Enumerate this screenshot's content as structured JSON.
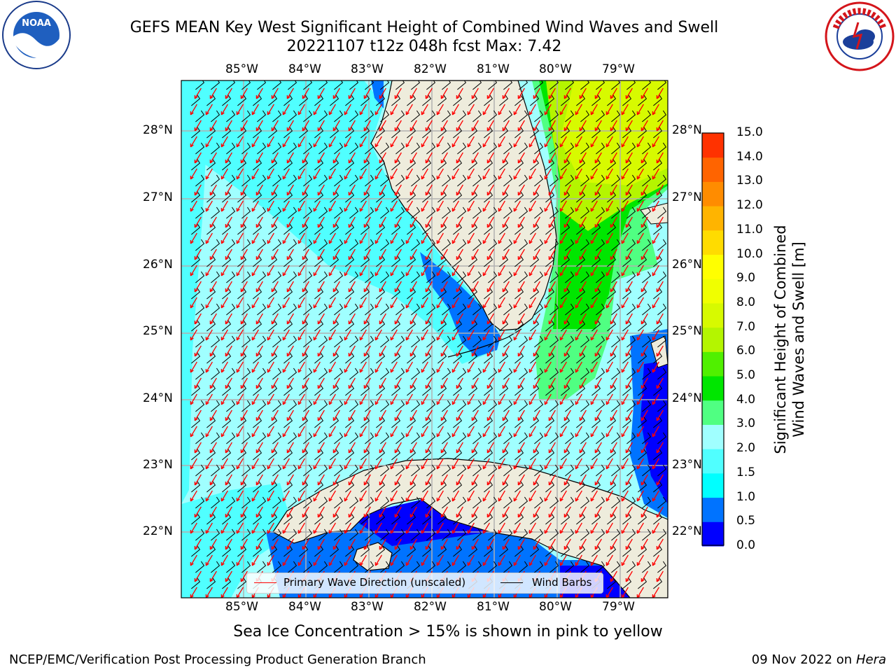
{
  "title_line1": "GEFS MEAN Key West Significant Height of Combined Wind Waves and Swell",
  "title_line2": "20221107 t12z 048h fcst   Max: 7.42",
  "logos": {
    "left": "NOAA",
    "left_ring_text": "NATIONAL OCEANIC AND ATMOSPHERIC ADMINISTRATION · U.S. DEPARTMENT OF COMMERCE",
    "right_ring_text": "NATIONAL WEATHER SERVICE"
  },
  "lon_ticks": [
    "85°W",
    "84°W",
    "83°W",
    "82°W",
    "81°W",
    "80°W",
    "79°W"
  ],
  "lat_ticks": [
    "28°N",
    "27°N",
    "26°N",
    "25°N",
    "24°N",
    "23°N",
    "22°N"
  ],
  "legend": {
    "wave_label": "Primary Wave Direction (unscaled)",
    "wind_label": "Wind Barbs",
    "wave_color": "#ff0000",
    "wind_color": "#000000"
  },
  "colorbar": {
    "title_line1": "Significant Height of Combined",
    "title_line2": "Wind Waves and Swell [m]",
    "labels": [
      "15.0",
      "14.0",
      "13.0",
      "12.0",
      "11.0",
      "10.0",
      "9.0",
      "8.0",
      "7.0",
      "6.0",
      "5.0",
      "4.0",
      "3.0",
      "2.0",
      "1.5",
      "1.0",
      "0.5",
      "0.0"
    ],
    "colors": [
      "#0000ff",
      "#0073ff",
      "#00ffff",
      "#50ffff",
      "#a0ffff",
      "#50ff82",
      "#00e600",
      "#50f000",
      "#b4f500",
      "#d7fa00",
      "#f0ff00",
      "#ffff00",
      "#ffdc00",
      "#ffb400",
      "#ff8c00",
      "#ff6400",
      "#ff3200",
      "#ff0000"
    ]
  },
  "caption": "Sea Ice Concentration > 15% is shown in pink to yellow",
  "footer_left": "NCEP/EMC/Verification Post Processing Product Generation Branch",
  "footer_right_prefix": "09 Nov 2022 on",
  "footer_right_host": "Hera"
}
